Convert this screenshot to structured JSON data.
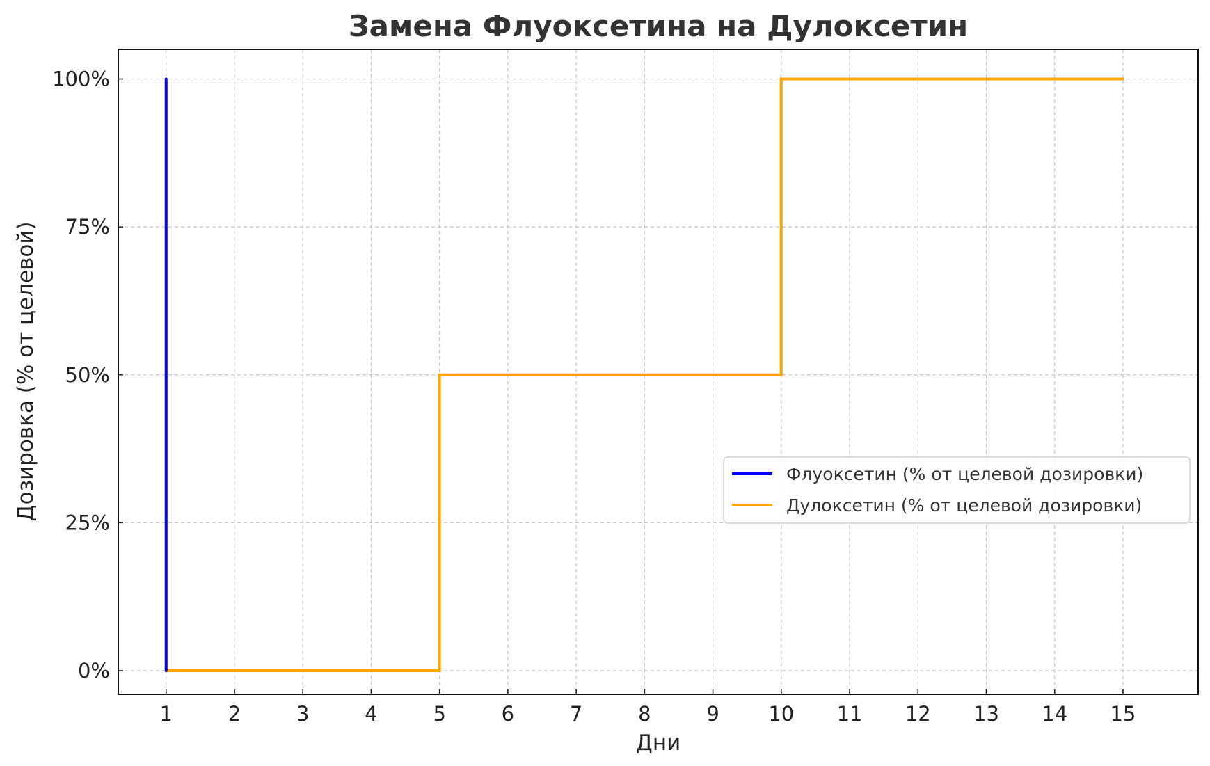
{
  "chart_data": {
    "type": "line",
    "title": "Замена Флуоксетина на Дулоксетин",
    "xlabel": "Дни",
    "ylabel": "Дозировка (% от целевой)",
    "xlim": [
      0.3,
      16.1
    ],
    "ylim": [
      -4,
      105
    ],
    "x_ticks": [
      1,
      2,
      3,
      4,
      5,
      6,
      7,
      8,
      9,
      10,
      11,
      12,
      13,
      14,
      15
    ],
    "x_tick_labels": [
      "1",
      "2",
      "3",
      "4",
      "5",
      "6",
      "7",
      "8",
      "9",
      "10",
      "11",
      "12",
      "13",
      "14",
      "15"
    ],
    "y_ticks": [
      0,
      25,
      50,
      75,
      100
    ],
    "y_tick_labels": [
      "0%",
      "25%",
      "50%",
      "75%",
      "100%"
    ],
    "grid": true,
    "legend_position": "center-right",
    "series": [
      {
        "name": "Флуоксетин (% от целевой дозировки)",
        "color": "#0000ff",
        "x": [
          1,
          1
        ],
        "y": [
          100,
          0
        ]
      },
      {
        "name": "Дулоксетин (% от целевой дозировки)",
        "color": "#ffa500",
        "x": [
          1,
          5,
          5,
          10,
          10,
          15
        ],
        "y": [
          0,
          0,
          50,
          50,
          100,
          100
        ]
      }
    ]
  }
}
